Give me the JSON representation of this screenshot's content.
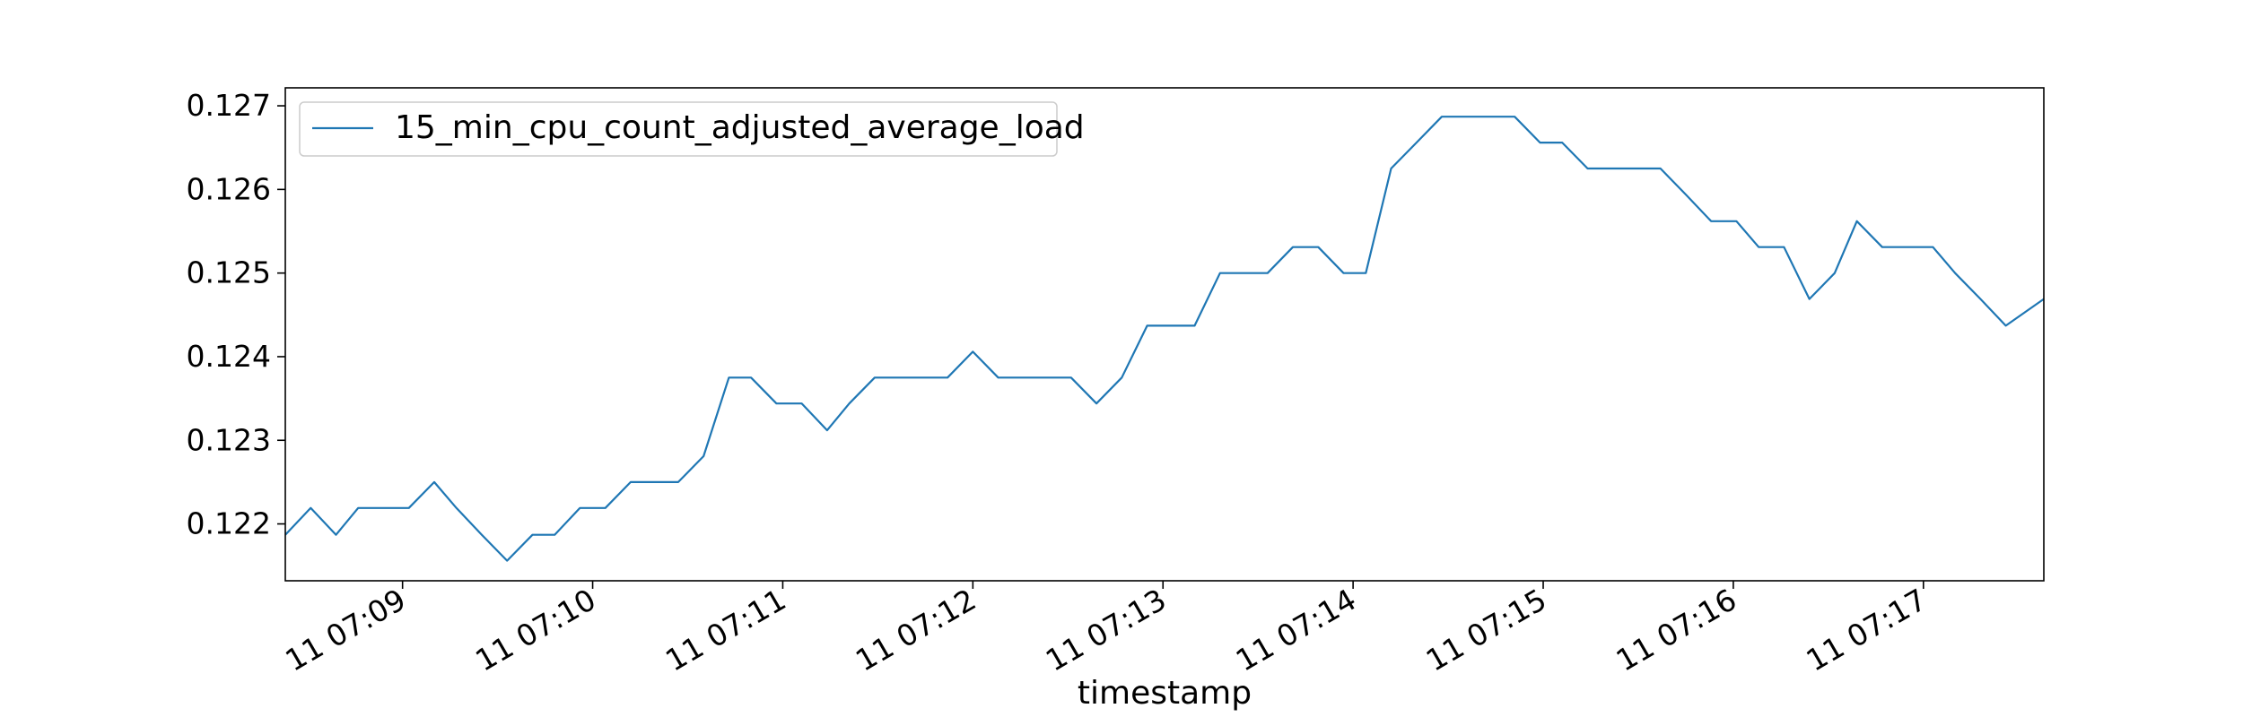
{
  "chart_data": {
    "type": "line",
    "title": "",
    "xlabel": "timestamp",
    "ylabel": "",
    "legend_position": "top-left",
    "grid": false,
    "ylim": [
      0.12132,
      0.127215
    ],
    "yticks": [
      0.122,
      0.123,
      0.124,
      0.125,
      0.126,
      0.127
    ],
    "ytick_labels": [
      "0.122",
      "0.123",
      "0.124",
      "0.125",
      "0.126",
      "0.127"
    ],
    "xlim": [
      "07:08:23",
      "07:17:38"
    ],
    "xticks": [
      "07:09:00",
      "07:10:00",
      "07:11:00",
      "07:12:00",
      "07:13:00",
      "07:14:00",
      "07:15:00",
      "07:16:00",
      "07:17:00"
    ],
    "xtick_labels": [
      "11 07:09",
      "11 07:10",
      "11 07:11",
      "11 07:12",
      "11 07:13",
      "11 07:14",
      "11 07:15",
      "11 07:16",
      "11 07:17"
    ],
    "series": [
      {
        "name": "15_min_cpu_count_adjusted_average_load",
        "color": "#1f77b4",
        "x": [
          "07:08:23",
          "07:08:31",
          "07:08:39",
          "07:08:46",
          "07:08:54",
          "07:09:02",
          "07:09:10",
          "07:09:17",
          "07:09:25",
          "07:09:33",
          "07:09:41",
          "07:09:48",
          "07:09:56",
          "07:10:04",
          "07:10:12",
          "07:10:19",
          "07:10:27",
          "07:10:35",
          "07:10:43",
          "07:10:50",
          "07:10:58",
          "07:11:06",
          "07:11:14",
          "07:11:21",
          "07:11:29",
          "07:11:37",
          "07:11:45",
          "07:11:52",
          "07:12:00",
          "07:12:08",
          "07:12:16",
          "07:12:24",
          "07:12:31",
          "07:12:39",
          "07:12:47",
          "07:12:55",
          "07:13:02",
          "07:13:10",
          "07:13:18",
          "07:13:26",
          "07:13:33",
          "07:13:41",
          "07:13:49",
          "07:13:57",
          "07:14:04",
          "07:14:12",
          "07:14:20",
          "07:14:28",
          "07:14:35",
          "07:14:43",
          "07:14:51",
          "07:14:59",
          "07:15:06",
          "07:15:14",
          "07:15:22",
          "07:15:30",
          "07:15:37",
          "07:15:45",
          "07:15:53",
          "07:16:01",
          "07:16:08",
          "07:16:16",
          "07:16:24",
          "07:16:32",
          "07:16:39",
          "07:16:47",
          "07:16:55",
          "07:17:03",
          "07:17:10",
          "07:17:18",
          "07:17:26",
          "07:17:38"
        ],
        "values": [
          0.12187,
          0.12219,
          0.12187,
          0.12219,
          0.12219,
          0.12219,
          0.1225,
          0.12219,
          0.12187,
          0.12156,
          0.12187,
          0.12187,
          0.12219,
          0.12219,
          0.1225,
          0.1225,
          0.1225,
          0.12281,
          0.12375,
          0.12375,
          0.12344,
          0.12344,
          0.12312,
          0.12344,
          0.12375,
          0.12375,
          0.12375,
          0.12375,
          0.12406,
          0.12375,
          0.12375,
          0.12375,
          0.12375,
          0.12344,
          0.12375,
          0.12437,
          0.12437,
          0.12437,
          0.125,
          0.125,
          0.125,
          0.12531,
          0.12531,
          0.125,
          0.125,
          0.12625,
          0.12656,
          0.12687,
          0.12687,
          0.12687,
          0.12687,
          0.12656,
          0.12656,
          0.12625,
          0.12625,
          0.12625,
          0.12625,
          0.12594,
          0.12562,
          0.12562,
          0.12531,
          0.12531,
          0.12469,
          0.125,
          0.12562,
          0.12531,
          0.12531,
          0.12531,
          0.125,
          0.12469,
          0.12437,
          0.12469
        ]
      }
    ]
  }
}
